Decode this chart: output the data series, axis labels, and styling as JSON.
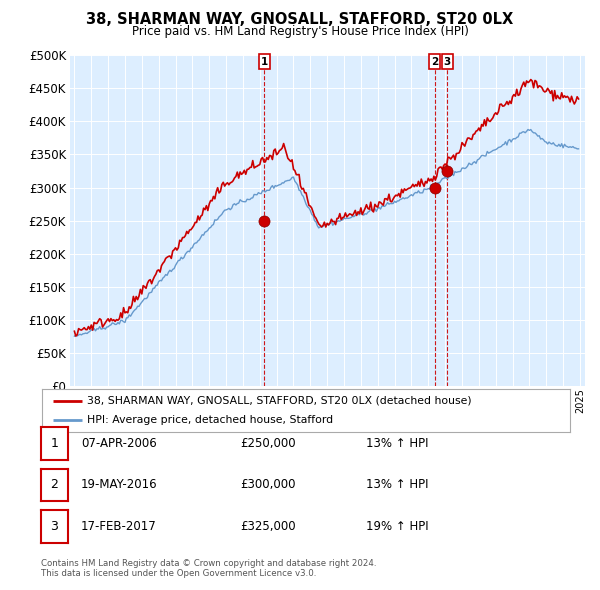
{
  "title": "38, SHARMAN WAY, GNOSALL, STAFFORD, ST20 0LX",
  "subtitle": "Price paid vs. HM Land Registry's House Price Index (HPI)",
  "ylim": [
    0,
    500000
  ],
  "yticks": [
    0,
    50000,
    100000,
    150000,
    200000,
    250000,
    300000,
    350000,
    400000,
    450000,
    500000
  ],
  "sale_color": "#cc0000",
  "hpi_color": "#6699cc",
  "plot_bg_color": "#ddeeff",
  "marker_color": "#cc0000",
  "vline_color": "#cc0000",
  "background_color": "#ffffff",
  "grid_color": "#ffffff",
  "legend_label_sale": "38, SHARMAN WAY, GNOSALL, STAFFORD, ST20 0LX (detached house)",
  "legend_label_hpi": "HPI: Average price, detached house, Stafford",
  "transactions": [
    {
      "num": 1,
      "date": "07-APR-2006",
      "price": 250000,
      "hpi_pct": "13%",
      "direction": "↑",
      "x_year": 2006.27
    },
    {
      "num": 2,
      "date": "19-MAY-2016",
      "price": 300000,
      "hpi_pct": "13%",
      "direction": "↑",
      "x_year": 2016.38
    },
    {
      "num": 3,
      "date": "17-FEB-2017",
      "price": 325000,
      "hpi_pct": "19%",
      "direction": "↑",
      "x_year": 2017.13
    }
  ],
  "footnote1": "Contains HM Land Registry data © Crown copyright and database right 2024.",
  "footnote2": "This data is licensed under the Open Government Licence v3.0.",
  "xlim_left": 1994.75,
  "xlim_right": 2025.3
}
